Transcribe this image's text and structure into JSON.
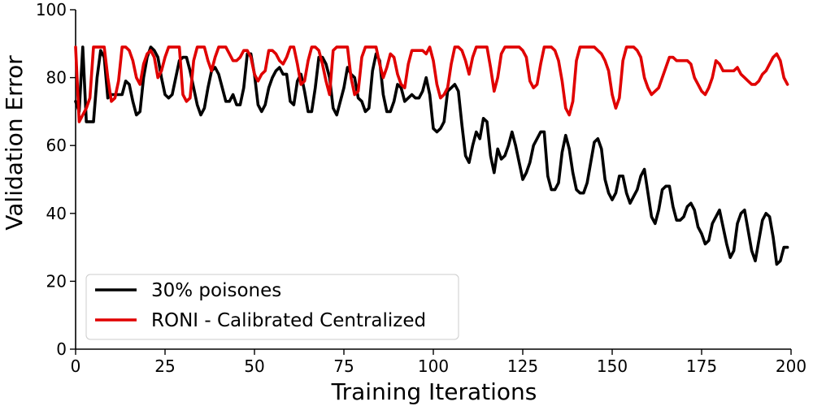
{
  "chart_data": {
    "type": "line",
    "title": "",
    "xlabel": "Training Iterations",
    "ylabel": "Validation Error",
    "xlim": [
      0,
      200
    ],
    "ylim": [
      0,
      100
    ],
    "xticks": [
      0,
      25,
      50,
      75,
      100,
      125,
      150,
      175,
      200
    ],
    "yticks": [
      0,
      20,
      40,
      60,
      80,
      100
    ],
    "grid": false,
    "legend_position": "lower-left",
    "x_step": 1,
    "series": [
      {
        "name": "30% poisones",
        "color": "#000000",
        "values": [
          73,
          70,
          89,
          67,
          67,
          67,
          80,
          88,
          86,
          74,
          75,
          75,
          75,
          75,
          79,
          78,
          73,
          69,
          70,
          80,
          86,
          89,
          88,
          86,
          80,
          75,
          74,
          75,
          80,
          85,
          86,
          86,
          82,
          77,
          72,
          69,
          71,
          77,
          82,
          83,
          81,
          77,
          73,
          73,
          75,
          72,
          72,
          77,
          87,
          87,
          81,
          72,
          70,
          72,
          77,
          80,
          82,
          83,
          81,
          81,
          73,
          72,
          79,
          81,
          76,
          70,
          70,
          77,
          86,
          86,
          84,
          80,
          71,
          69,
          73,
          77,
          83,
          81,
          80,
          74,
          73,
          70,
          71,
          82,
          87,
          85,
          75,
          70,
          70,
          73,
          78,
          77,
          73,
          74,
          75,
          74,
          74,
          76,
          80,
          75,
          65,
          64,
          65,
          67,
          76,
          77,
          78,
          76,
          66,
          57,
          55,
          60,
          64,
          62,
          68,
          67,
          57,
          52,
          59,
          56,
          57,
          60,
          64,
          60,
          55,
          50,
          52,
          55,
          60,
          62,
          64,
          64,
          51,
          47,
          47,
          49,
          58,
          63,
          59,
          52,
          47,
          46,
          46,
          49,
          55,
          61,
          62,
          59,
          50,
          46,
          44,
          46,
          51,
          51,
          46,
          43,
          45,
          47,
          51,
          53,
          46,
          39,
          37,
          41,
          47,
          48,
          48,
          42,
          38,
          38,
          39,
          42,
          43,
          41,
          36,
          34,
          31,
          32,
          37,
          39,
          41,
          36,
          31,
          27,
          29,
          37,
          40,
          41,
          35,
          29,
          26,
          32,
          38,
          40,
          39,
          33,
          25,
          26,
          30,
          30
        ]
      },
      {
        "name": "RONI - Calibrated Centralized",
        "color": "#e00000",
        "values": [
          89,
          67,
          69,
          71,
          74,
          89,
          89,
          89,
          89,
          80,
          73,
          74,
          79,
          89,
          89,
          88,
          85,
          80,
          78,
          84,
          87,
          88,
          86,
          80,
          82,
          86,
          89,
          89,
          89,
          89,
          75,
          73,
          74,
          85,
          89,
          89,
          89,
          85,
          82,
          86,
          89,
          89,
          89,
          87,
          85,
          85,
          86,
          88,
          88,
          86,
          81,
          79,
          81,
          82,
          88,
          88,
          87,
          85,
          84,
          86,
          89,
          89,
          84,
          78,
          79,
          85,
          89,
          89,
          88,
          84,
          79,
          75,
          88,
          89,
          89,
          89,
          89,
          80,
          75,
          76,
          86,
          89,
          89,
          89,
          89,
          84,
          80,
          83,
          87,
          86,
          81,
          78,
          77,
          84,
          88,
          88,
          88,
          88,
          87,
          89,
          85,
          78,
          74,
          75,
          77,
          84,
          89,
          89,
          88,
          85,
          81,
          86,
          89,
          89,
          89,
          89,
          83,
          76,
          80,
          87,
          89,
          89,
          89,
          89,
          89,
          88,
          86,
          79,
          77,
          78,
          84,
          89,
          89,
          89,
          88,
          85,
          79,
          71,
          69,
          73,
          85,
          89,
          89,
          89,
          89,
          89,
          88,
          87,
          85,
          82,
          75,
          71,
          74,
          85,
          89,
          89,
          89,
          88,
          86,
          80,
          77,
          75,
          76,
          77,
          80,
          83,
          86,
          86,
          85,
          85,
          85,
          85,
          84,
          80,
          78,
          76,
          75,
          77,
          80,
          85,
          84,
          82,
          82,
          82,
          82,
          83,
          81,
          80,
          79,
          78,
          78,
          79,
          81,
          82,
          84,
          86,
          87,
          85,
          80,
          78
        ]
      }
    ]
  }
}
